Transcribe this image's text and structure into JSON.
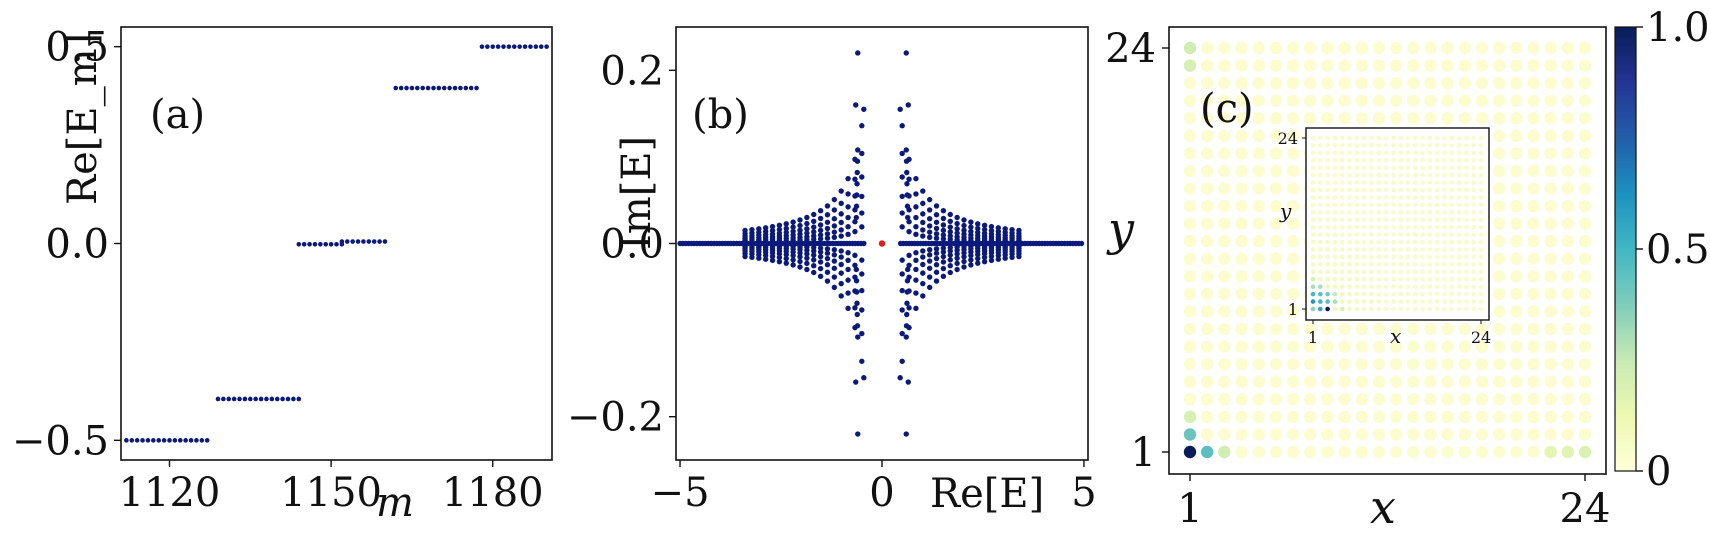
{
  "chart_data": [
    {
      "panel": "(a)",
      "type": "scatter",
      "xlabel": "m",
      "ylabel": "Re[E_m]",
      "xlim": [
        1111,
        1191
      ],
      "ylim": [
        -0.55,
        0.55
      ],
      "xticks": [
        "1120",
        "1150",
        "1180"
      ],
      "yticks": [
        "−0.5",
        "0.0",
        "0.5"
      ],
      "marker_color": "#0b1a7a",
      "plateaus": [
        {
          "x_start": 1112,
          "x_end": 1127,
          "y": -0.5
        },
        {
          "x_start": 1129,
          "x_end": 1144,
          "y": -0.395
        },
        {
          "x_start": 1144,
          "x_end": 1152,
          "y": -0.002
        },
        {
          "x_start": 1152,
          "x_end": 1160,
          "y": 0.005
        },
        {
          "x_start": 1162,
          "x_end": 1177,
          "y": 0.395
        },
        {
          "x_start": 1178,
          "x_end": 1191,
          "y": 0.5
        }
      ]
    },
    {
      "panel": "(b)",
      "type": "scatter",
      "xlabel": "Re[E]",
      "ylabel": "Im[E]",
      "xlim": [
        -5.1,
        5.1
      ],
      "ylim": [
        -0.25,
        0.25
      ],
      "xticks": [
        "−5",
        "0",
        "5"
      ],
      "yticks": [
        "−0.2",
        "0.0",
        "0.2"
      ],
      "marker_color": "#0b1a7a",
      "highlight_color": "#e31a1c",
      "highlight_point": {
        "x": 0.0,
        "y": 0.0
      },
      "real_line_range": [
        -5.0,
        5.0
      ],
      "isolated_points": [
        {
          "x": -0.6,
          "y": 0.22
        },
        {
          "x": 0.6,
          "y": 0.22
        },
        {
          "x": -0.6,
          "y": -0.22
        },
        {
          "x": 0.6,
          "y": -0.22
        },
        {
          "x": -0.65,
          "y": 0.16
        },
        {
          "x": -0.45,
          "y": 0.155
        },
        {
          "x": 0.45,
          "y": 0.155
        },
        {
          "x": 0.65,
          "y": 0.16
        },
        {
          "x": -0.65,
          "y": -0.16
        },
        {
          "x": -0.45,
          "y": -0.155
        },
        {
          "x": 0.45,
          "y": -0.155
        },
        {
          "x": 0.65,
          "y": -0.16
        }
      ],
      "branch_amplitudes": [
        0.085,
        0.065,
        0.048,
        0.034,
        0.022,
        0.012
      ],
      "branch_x_range": [
        0.5,
        3.5
      ]
    },
    {
      "panel": "(c)",
      "type": "heatmap",
      "xlabel": "x",
      "ylabel": "y",
      "grid_size": 24,
      "xticks": [
        "1",
        "24"
      ],
      "yticks": [
        "1",
        "24"
      ],
      "colorbar": {
        "ticks": [
          "0",
          "0.5",
          "1.0"
        ],
        "colormap": "YlGnBu",
        "range": [
          0,
          1
        ]
      },
      "highlights": [
        {
          "x": 1,
          "y": 1,
          "v": 1.0
        },
        {
          "x": 2,
          "y": 1,
          "v": 0.45
        },
        {
          "x": 1,
          "y": 2,
          "v": 0.42
        },
        {
          "x": 3,
          "y": 1,
          "v": 0.22
        },
        {
          "x": 1,
          "y": 3,
          "v": 0.2
        },
        {
          "x": 1,
          "y": 24,
          "v": 0.22
        },
        {
          "x": 1,
          "y": 23,
          "v": 0.2
        },
        {
          "x": 24,
          "y": 1,
          "v": 0.18
        },
        {
          "x": 23,
          "y": 1,
          "v": 0.16
        },
        {
          "x": 22,
          "y": 1,
          "v": 0.15
        }
      ],
      "background_value": 0.03,
      "inset": {
        "xlabel": "x",
        "ylabel": "y",
        "xticks": [
          "1",
          "24"
        ],
        "yticks": [
          "1",
          "24"
        ],
        "highlights": [
          {
            "x": 3,
            "y": 1,
            "v": 1.0
          },
          {
            "x": 2,
            "y": 1,
            "v": 0.55
          },
          {
            "x": 1,
            "y": 2,
            "v": 0.6
          },
          {
            "x": 2,
            "y": 2,
            "v": 0.5
          },
          {
            "x": 3,
            "y": 2,
            "v": 0.45
          },
          {
            "x": 1,
            "y": 3,
            "v": 0.5
          },
          {
            "x": 2,
            "y": 3,
            "v": 0.45
          },
          {
            "x": 3,
            "y": 3,
            "v": 0.4
          },
          {
            "x": 1,
            "y": 4,
            "v": 0.3
          },
          {
            "x": 2,
            "y": 4,
            "v": 0.3
          },
          {
            "x": 4,
            "y": 2,
            "v": 0.3
          },
          {
            "x": 4,
            "y": 3,
            "v": 0.25
          },
          {
            "x": 1,
            "y": 5,
            "v": 0.2
          },
          {
            "x": 5,
            "y": 1,
            "v": 0.2
          },
          {
            "x": 1,
            "y": 1,
            "v": 0.35
          }
        ],
        "background_value": 0.05
      }
    }
  ]
}
